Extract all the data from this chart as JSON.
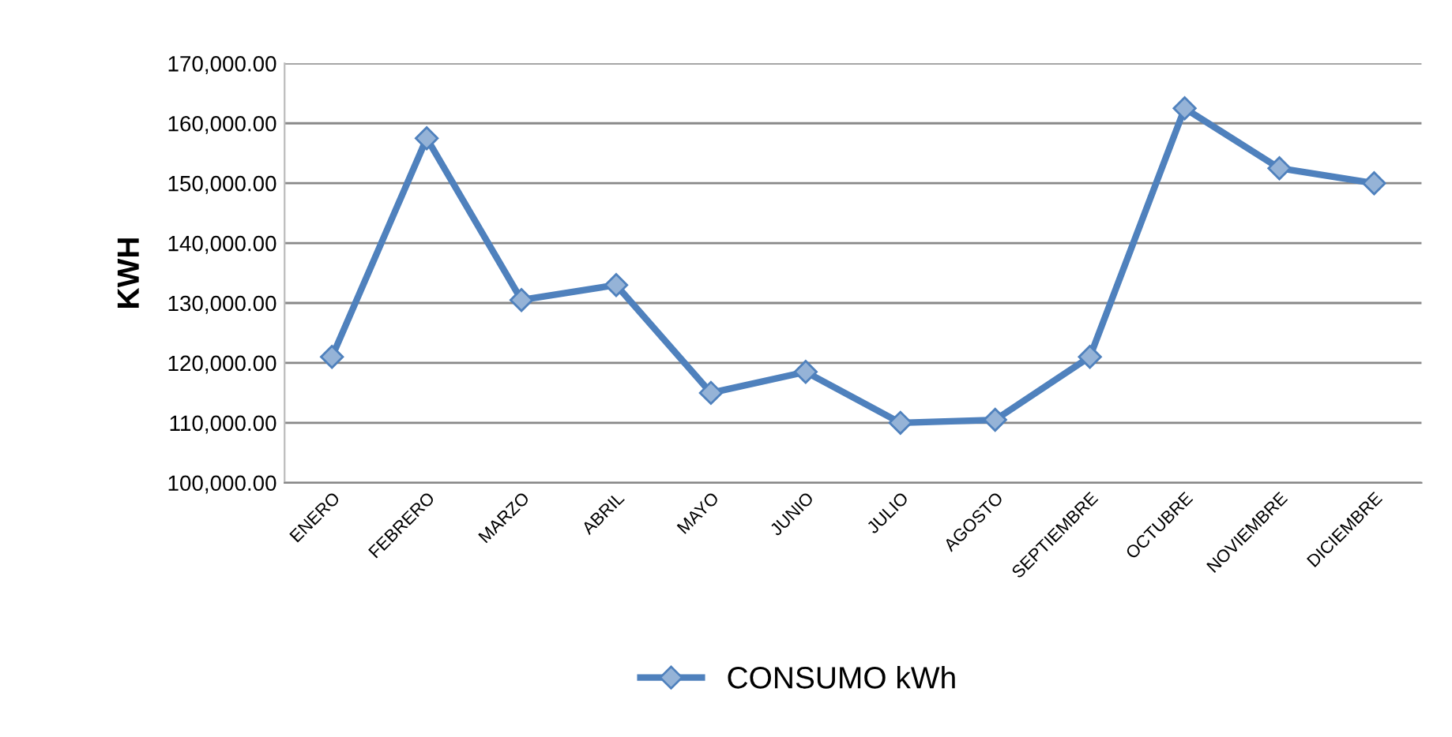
{
  "chart_data": {
    "type": "line",
    "ylabel": "KWH",
    "categories": [
      "ENERO",
      "FEBRERO",
      "MARZO",
      "ABRIL",
      "MAYO",
      "JUNIO",
      "JULIO",
      "AGOSTO",
      "SEPTIEMBRE",
      "OCTUBRE",
      "NOVIEMBRE",
      "DICIEMBRE"
    ],
    "series": [
      {
        "name": "CONSUMO kWh",
        "color": "#4f81bd",
        "values": [
          121000,
          157500,
          130500,
          133000,
          115000,
          118500,
          110000,
          110500,
          121000,
          162500,
          152500,
          150000
        ]
      }
    ],
    "ylim": [
      100000,
      170000
    ],
    "yticks": [
      {
        "value": 100000,
        "label": "100,000.00"
      },
      {
        "value": 110000,
        "label": "110,000.00"
      },
      {
        "value": 120000,
        "label": "120,000.00"
      },
      {
        "value": 130000,
        "label": "130,000.00"
      },
      {
        "value": 140000,
        "label": "140,000.00"
      },
      {
        "value": 150000,
        "label": "150,000.00"
      },
      {
        "value": 160000,
        "label": "160,000.00"
      },
      {
        "value": 170000,
        "label": "170,000.00"
      }
    ],
    "grid": "y",
    "legend": "bottom",
    "marker": "diamond",
    "line_style": "solid"
  }
}
